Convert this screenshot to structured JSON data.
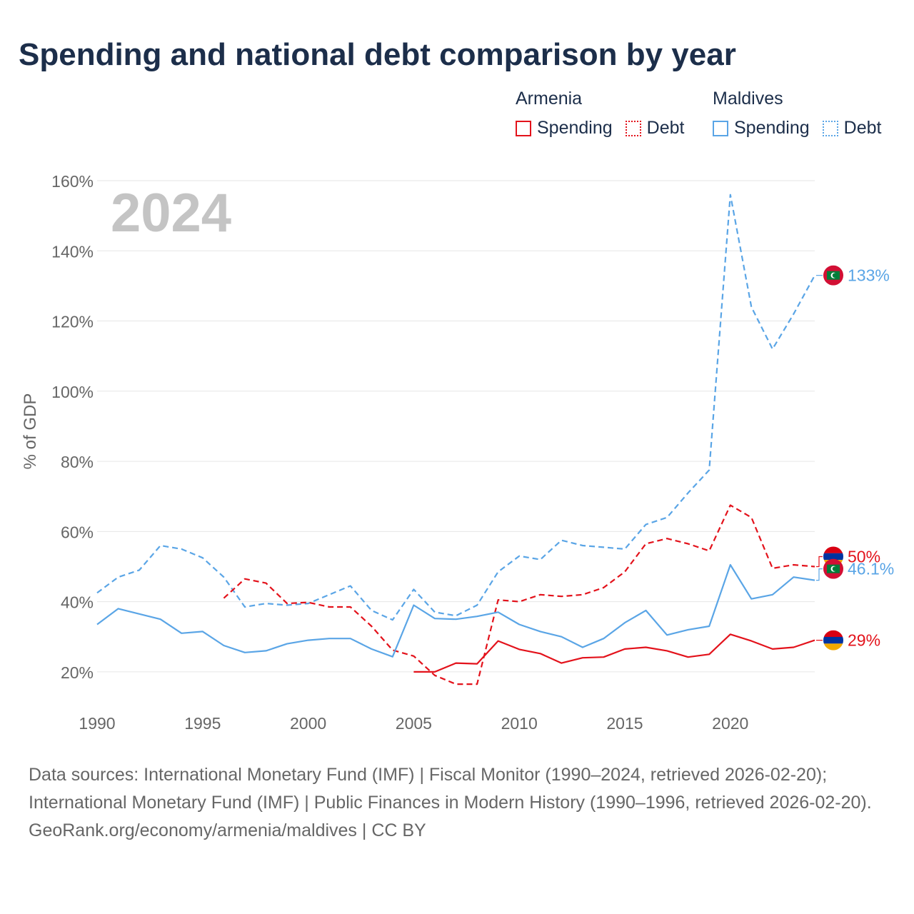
{
  "title": "Spending and national debt comparison by year",
  "legend": {
    "groups": [
      {
        "country": "Armenia",
        "color": "#e3121b",
        "items": [
          {
            "label": "Spending",
            "style": "solid"
          },
          {
            "label": "Debt",
            "style": "dotted"
          }
        ]
      },
      {
        "country": "Maldives",
        "color": "#5aa5e6",
        "items": [
          {
            "label": "Spending",
            "style": "solid"
          },
          {
            "label": "Debt",
            "style": "dotted"
          }
        ]
      }
    ]
  },
  "chart_data": {
    "type": "line",
    "ylabel": "% of GDP",
    "year_watermark": "2024",
    "xlim": [
      1990,
      2024
    ],
    "ylim": [
      10,
      160
    ],
    "y_ticks": [
      20,
      40,
      60,
      80,
      100,
      120,
      140,
      160
    ],
    "y_tick_labels": [
      "20%",
      "40%",
      "60%",
      "80%",
      "100%",
      "120%",
      "140%",
      "160%"
    ],
    "x_ticks": [
      1990,
      1995,
      2000,
      2005,
      2010,
      2015,
      2020
    ],
    "x_tick_labels": [
      "1990",
      "1995",
      "2000",
      "2005",
      "2010",
      "2015",
      "2020"
    ],
    "series": [
      {
        "name": "Maldives Debt",
        "color": "#5aa5e6",
        "dash": "dashed",
        "start_year": 1990,
        "values": [
          42.5,
          47,
          49,
          56,
          55,
          52.5,
          47,
          38.5,
          39.5,
          39,
          39.5,
          42,
          44.5,
          37.5,
          34.8,
          43.5,
          37,
          36,
          39,
          48.5,
          53,
          52,
          57.5,
          56,
          55.5,
          55,
          62,
          64,
          71,
          77.5,
          156,
          124,
          112,
          122,
          133
        ]
      },
      {
        "name": "Armenia Debt",
        "color": "#e3121b",
        "dash": "dashed",
        "start_year": 1996,
        "values": [
          41,
          46.5,
          45.3,
          39.5,
          39.8,
          38.5,
          38.5,
          33,
          26.2,
          24.5,
          19,
          16.5,
          16.5,
          40.5,
          40,
          42,
          41.5,
          42,
          44,
          48.5,
          56.5,
          58,
          56.5,
          54.5,
          67.5,
          64,
          49.5,
          50.5,
          50
        ]
      },
      {
        "name": "Maldives Spending",
        "color": "#5aa5e6",
        "dash": "solid",
        "start_year": 1990,
        "values": [
          33.5,
          38,
          36.5,
          35,
          31,
          31.5,
          27.5,
          25.5,
          26,
          28,
          29,
          29.5,
          29.5,
          26.5,
          24.3,
          39,
          35.2,
          35,
          35.8,
          37,
          33.5,
          31.5,
          30,
          27,
          29.5,
          34,
          37.5,
          30.5,
          32,
          33,
          50.5,
          40.8,
          42,
          47,
          46.1
        ]
      },
      {
        "name": "Armenia Spending",
        "color": "#e3121b",
        "dash": "solid",
        "start_year": 2005,
        "values": [
          20,
          20,
          22.5,
          22.3,
          28.8,
          26.4,
          25.2,
          22.5,
          24,
          24.2,
          26.5,
          27,
          26,
          24.2,
          25,
          30.7,
          28.8,
          26.5,
          27,
          29
        ]
      }
    ],
    "end_labels": [
      {
        "series": "Maldives Debt",
        "text": "133%",
        "value": 133,
        "flag": "maldives"
      },
      {
        "series": "Armenia Debt",
        "text": "50%",
        "value": 50,
        "flag": "armenia"
      },
      {
        "series": "Maldives Spending",
        "text": "46.1%",
        "value": 46.1,
        "flag": "maldives"
      },
      {
        "series": "Armenia Spending",
        "text": "29%",
        "value": 29,
        "flag": "armenia"
      }
    ],
    "flag_colors": {
      "armenia": [
        "#d90012",
        "#0033a0",
        "#f2a800"
      ],
      "maldives": {
        "border": "#d21034",
        "field": "#007e3a",
        "crescent": "#ffffff"
      }
    }
  },
  "footer": {
    "sources": "Data sources: International Monetary Fund (IMF) | Fiscal Monitor (1990–2024, retrieved 2026-02-20); International Monetary Fund (IMF) | Public Finances in Modern History (1990–1996, retrieved 2026-02-20).",
    "credit": "GeoRank.org/economy/armenia/maldives | CC BY"
  }
}
